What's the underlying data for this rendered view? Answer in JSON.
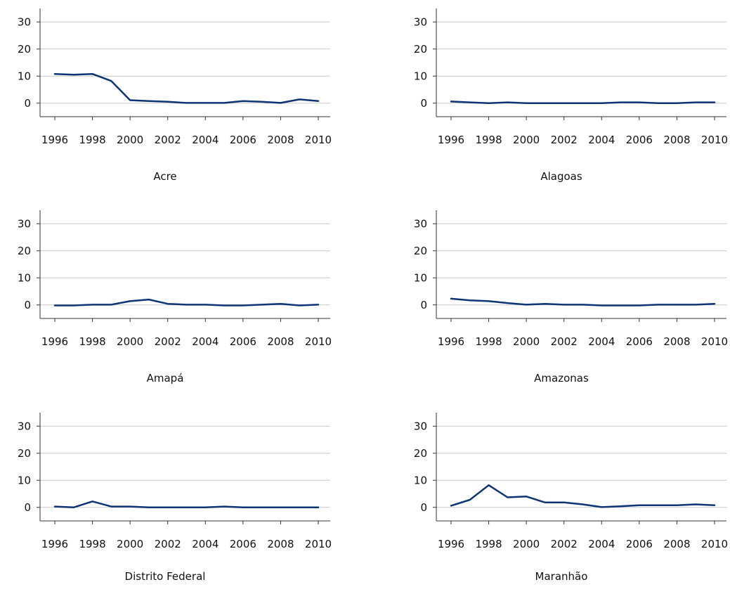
{
  "chart_data": [
    {
      "type": "line",
      "title": "Acre",
      "x": [
        1996,
        1997,
        1998,
        1999,
        2000,
        2001,
        2002,
        2003,
        2004,
        2005,
        2006,
        2007,
        2008,
        2009,
        2010
      ],
      "series": [
        {
          "values": [
            10.8,
            10.5,
            10.8,
            8.2,
            1.1,
            0.8,
            0.5,
            0.1,
            0.1,
            0.1,
            0.8,
            0.5,
            0.1,
            1.4,
            0.8
          ]
        }
      ],
      "xticks": [
        "1996",
        "1998",
        "2000",
        "2002",
        "2004",
        "2006",
        "2008",
        "2010"
      ],
      "yticks": [
        "0",
        "10",
        "20",
        "30"
      ],
      "ylim": [
        -5,
        35
      ],
      "xlim": [
        1996,
        2010
      ],
      "grid": true,
      "color": "#0d3574"
    },
    {
      "type": "line",
      "title": "Alagoas",
      "x": [
        1996,
        1997,
        1998,
        1999,
        2000,
        2001,
        2002,
        2003,
        2004,
        2005,
        2006,
        2007,
        2008,
        2009,
        2010
      ],
      "series": [
        {
          "values": [
            0.6,
            0.3,
            0.0,
            0.3,
            0.0,
            0.0,
            0.0,
            0.0,
            0.0,
            0.3,
            0.3,
            0.0,
            0.0,
            0.3,
            0.3
          ]
        }
      ],
      "xticks": [
        "1996",
        "1998",
        "2000",
        "2002",
        "2004",
        "2006",
        "2008",
        "2010"
      ],
      "yticks": [
        "0",
        "10",
        "20",
        "30"
      ],
      "ylim": [
        -5,
        35
      ],
      "xlim": [
        1996,
        2010
      ],
      "grid": true,
      "color": "#0d3574"
    },
    {
      "type": "line",
      "title": "Amapá",
      "x": [
        1996,
        1997,
        1998,
        1999,
        2000,
        2001,
        2002,
        2003,
        2004,
        2005,
        2006,
        2007,
        2008,
        2009,
        2010
      ],
      "series": [
        {
          "values": [
            -0.2,
            -0.2,
            0.1,
            0.1,
            1.4,
            2.0,
            0.4,
            0.1,
            0.1,
            -0.2,
            -0.2,
            0.1,
            0.4,
            -0.2,
            0.1
          ]
        }
      ],
      "xticks": [
        "1996",
        "1998",
        "2000",
        "2002",
        "2004",
        "2006",
        "2008",
        "2010"
      ],
      "yticks": [
        "0",
        "10",
        "20",
        "30"
      ],
      "ylim": [
        -5,
        35
      ],
      "xlim": [
        1996,
        2010
      ],
      "grid": true,
      "color": "#0d3574"
    },
    {
      "type": "line",
      "title": "Amazonas",
      "x": [
        1996,
        1997,
        1998,
        1999,
        2000,
        2001,
        2002,
        2003,
        2004,
        2005,
        2006,
        2007,
        2008,
        2009,
        2010
      ],
      "series": [
        {
          "values": [
            2.3,
            1.7,
            1.4,
            0.7,
            0.1,
            0.4,
            0.1,
            0.1,
            -0.2,
            -0.2,
            -0.2,
            0.1,
            0.1,
            0.1,
            0.4
          ]
        }
      ],
      "xticks": [
        "1996",
        "1998",
        "2000",
        "2002",
        "2004",
        "2006",
        "2008",
        "2010"
      ],
      "yticks": [
        "0",
        "10",
        "20",
        "30"
      ],
      "ylim": [
        -5,
        35
      ],
      "xlim": [
        1996,
        2010
      ],
      "grid": true,
      "color": "#0d3574"
    },
    {
      "type": "line",
      "title": "Distrito Federal",
      "x": [
        1996,
        1997,
        1998,
        1999,
        2000,
        2001,
        2002,
        2003,
        2004,
        2005,
        2006,
        2007,
        2008,
        2009,
        2010
      ],
      "series": [
        {
          "values": [
            0.3,
            0.0,
            2.2,
            0.3,
            0.3,
            0.0,
            0.0,
            0.0,
            0.0,
            0.3,
            0.0,
            0.0,
            0.0,
            0.0,
            0.0
          ]
        }
      ],
      "xticks": [
        "1996",
        "1998",
        "2000",
        "2002",
        "2004",
        "2006",
        "2008",
        "2010"
      ],
      "yticks": [
        "0",
        "10",
        "20",
        "30"
      ],
      "ylim": [
        -5,
        35
      ],
      "xlim": [
        1996,
        2010
      ],
      "grid": true,
      "color": "#0d3574"
    },
    {
      "type": "line",
      "title": "Maranhão",
      "x": [
        1996,
        1997,
        1998,
        1999,
        2000,
        2001,
        2002,
        2003,
        2004,
        2005,
        2006,
        2007,
        2008,
        2009,
        2010
      ],
      "series": [
        {
          "values": [
            0.6,
            2.8,
            8.2,
            3.7,
            4.0,
            1.8,
            1.8,
            1.1,
            0.1,
            0.4,
            0.8,
            0.8,
            0.8,
            1.1,
            0.8
          ]
        }
      ],
      "xticks": [
        "1996",
        "1998",
        "2000",
        "2002",
        "2004",
        "2006",
        "2008",
        "2010"
      ],
      "yticks": [
        "0",
        "10",
        "20",
        "30"
      ],
      "ylim": [
        -5,
        35
      ],
      "xlim": [
        1996,
        2010
      ],
      "grid": true,
      "color": "#0d3574"
    }
  ]
}
